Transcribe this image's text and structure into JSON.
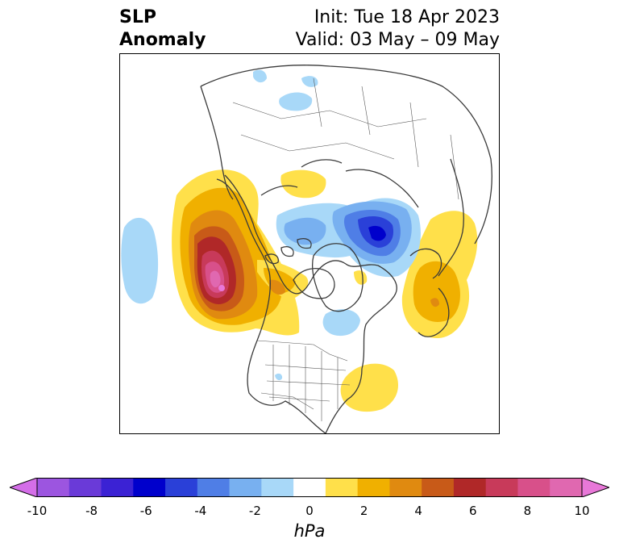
{
  "title": {
    "variable_line1": "SLP",
    "variable_line2": "Anomaly",
    "init": "Init: Tue 18 Apr 2023",
    "valid": "Valid: 03 May – 09 May"
  },
  "colorbar": {
    "unit": "hPa",
    "tick_labels": [
      "-10",
      "-8",
      "-6",
      "-4",
      "-2",
      "0",
      "2",
      "4",
      "6",
      "8",
      "10"
    ],
    "levels": [
      -10,
      -9,
      -8,
      -7,
      -6,
      -5,
      -4,
      -3,
      -2,
      -1,
      1,
      2,
      3,
      4,
      5,
      6,
      7,
      8,
      9,
      10
    ],
    "colors": [
      "#d46ee8",
      "#9c55e0",
      "#6a3ad8",
      "#3b22d4",
      "#0000cc",
      "#2a40d8",
      "#4f7ee6",
      "#78b0f0",
      "#a8d8f8",
      "#ffffff",
      "#ffe04a",
      "#f0b000",
      "#e08a10",
      "#c85a18",
      "#b02828",
      "#c83a5a",
      "#d8508a",
      "#e068b0",
      "#e878d8"
    ],
    "extend": "both"
  },
  "map": {
    "projection": "north polar stereographic",
    "region": "Northern Hemisphere / North America",
    "features": [
      "coastlines",
      "country borders",
      "US state borders"
    ]
  }
}
